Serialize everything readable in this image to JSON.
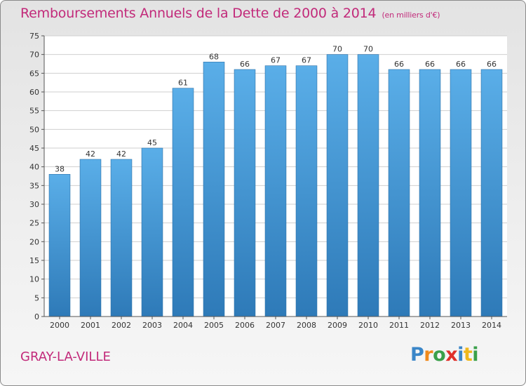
{
  "header": {
    "title": "Remboursements Annuels de la Dette de 2000 à 2014",
    "unit": "(en milliers d'€)"
  },
  "footer": {
    "commune": "GRAY-LA-VILLE",
    "logo_letters": [
      "P",
      "r",
      "o",
      "x",
      "i",
      "t",
      "i"
    ],
    "logo_colors": [
      "#3a86c8",
      "#f08a1c",
      "#3aa04a",
      "#e0302a",
      "#3a86c8",
      "#f0b81c",
      "#3aa04a"
    ]
  },
  "chart_data": {
    "type": "bar",
    "title": "Remboursements Annuels de la Dette de 2000 à 2014",
    "categories": [
      "2000",
      "2001",
      "2002",
      "2003",
      "2004",
      "2005",
      "2006",
      "2007",
      "2008",
      "2009",
      "2010",
      "2011",
      "2012",
      "2013",
      "2014"
    ],
    "values": [
      38,
      42,
      42,
      45,
      61,
      68,
      66,
      67,
      67,
      70,
      70,
      66,
      66,
      66,
      66
    ],
    "ylim": [
      0,
      75
    ],
    "yticks": [
      0,
      5,
      10,
      15,
      20,
      25,
      30,
      35,
      40,
      45,
      50,
      55,
      60,
      65,
      70,
      75
    ],
    "grid": true,
    "bar_color_top": "#5aaee8",
    "bar_color_bottom": "#2e7ab8"
  }
}
